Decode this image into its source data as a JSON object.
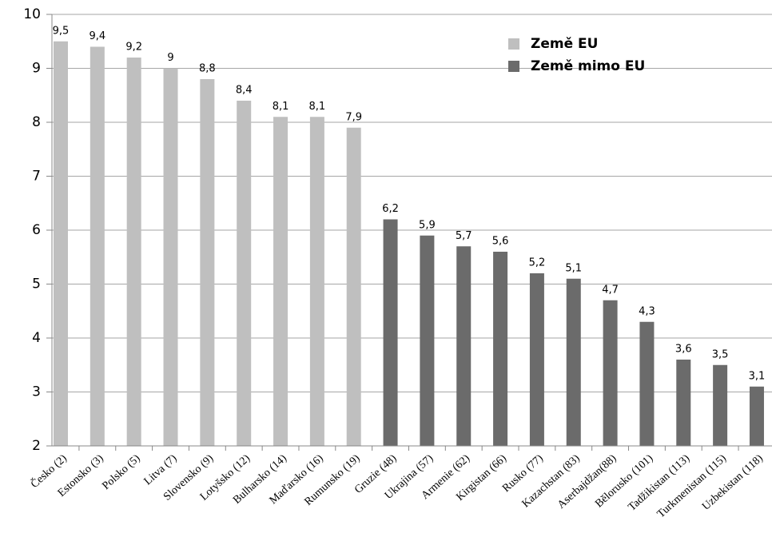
{
  "chart_data": {
    "type": "bar",
    "categories": [
      "Česko (2)",
      "Estonsko (3)",
      "Polsko (5)",
      "Litva (7)",
      "Slovensko (9)",
      "Lotyšsko (12)",
      "Bulharsko (14)",
      "Maďarsko (16)",
      "Rumunsko (19)",
      "Gruzie (48)",
      "Ukrajina (57)",
      "Armenie (62)",
      "Kirgistan (66)",
      "Rusko (77)",
      "Kazachstan (83)",
      "Aserbajdžan(88)",
      "Bělorusko (101)",
      "Tadžikistan (113)",
      "Turkmenistan (115)",
      "Uzbekistan (118)"
    ],
    "series": [
      {
        "name": "Země EU",
        "color": "#bfbfbf",
        "values": [
          9.5,
          9.4,
          9.2,
          9,
          8.8,
          8.4,
          8.1,
          8.1,
          7.9,
          null,
          null,
          null,
          null,
          null,
          null,
          null,
          null,
          null,
          null,
          null
        ],
        "value_labels": [
          "9,5",
          "9,4",
          "9,2",
          "9",
          "8,8",
          "8,4",
          "8,1",
          "8,1",
          "7,9",
          null,
          null,
          null,
          null,
          null,
          null,
          null,
          null,
          null,
          null,
          null
        ]
      },
      {
        "name": "Země mimo EU",
        "color": "#6b6b6b",
        "values": [
          null,
          null,
          null,
          null,
          null,
          null,
          null,
          null,
          null,
          6.2,
          5.9,
          5.7,
          5.6,
          5.2,
          5.1,
          4.7,
          4.3,
          3.6,
          3.5,
          3.1
        ],
        "value_labels": [
          null,
          null,
          null,
          null,
          null,
          null,
          null,
          null,
          null,
          "6,2",
          "5,9",
          "5,7",
          "5,6",
          "5,2",
          "5,1",
          "4,7",
          "4,3",
          "3,6",
          "3,5",
          "3,1"
        ]
      }
    ],
    "ylim": [
      2,
      10
    ],
    "yticks": [
      2,
      3,
      4,
      5,
      6,
      7,
      8,
      9,
      10
    ],
    "grid": true,
    "legend": "upper right"
  }
}
